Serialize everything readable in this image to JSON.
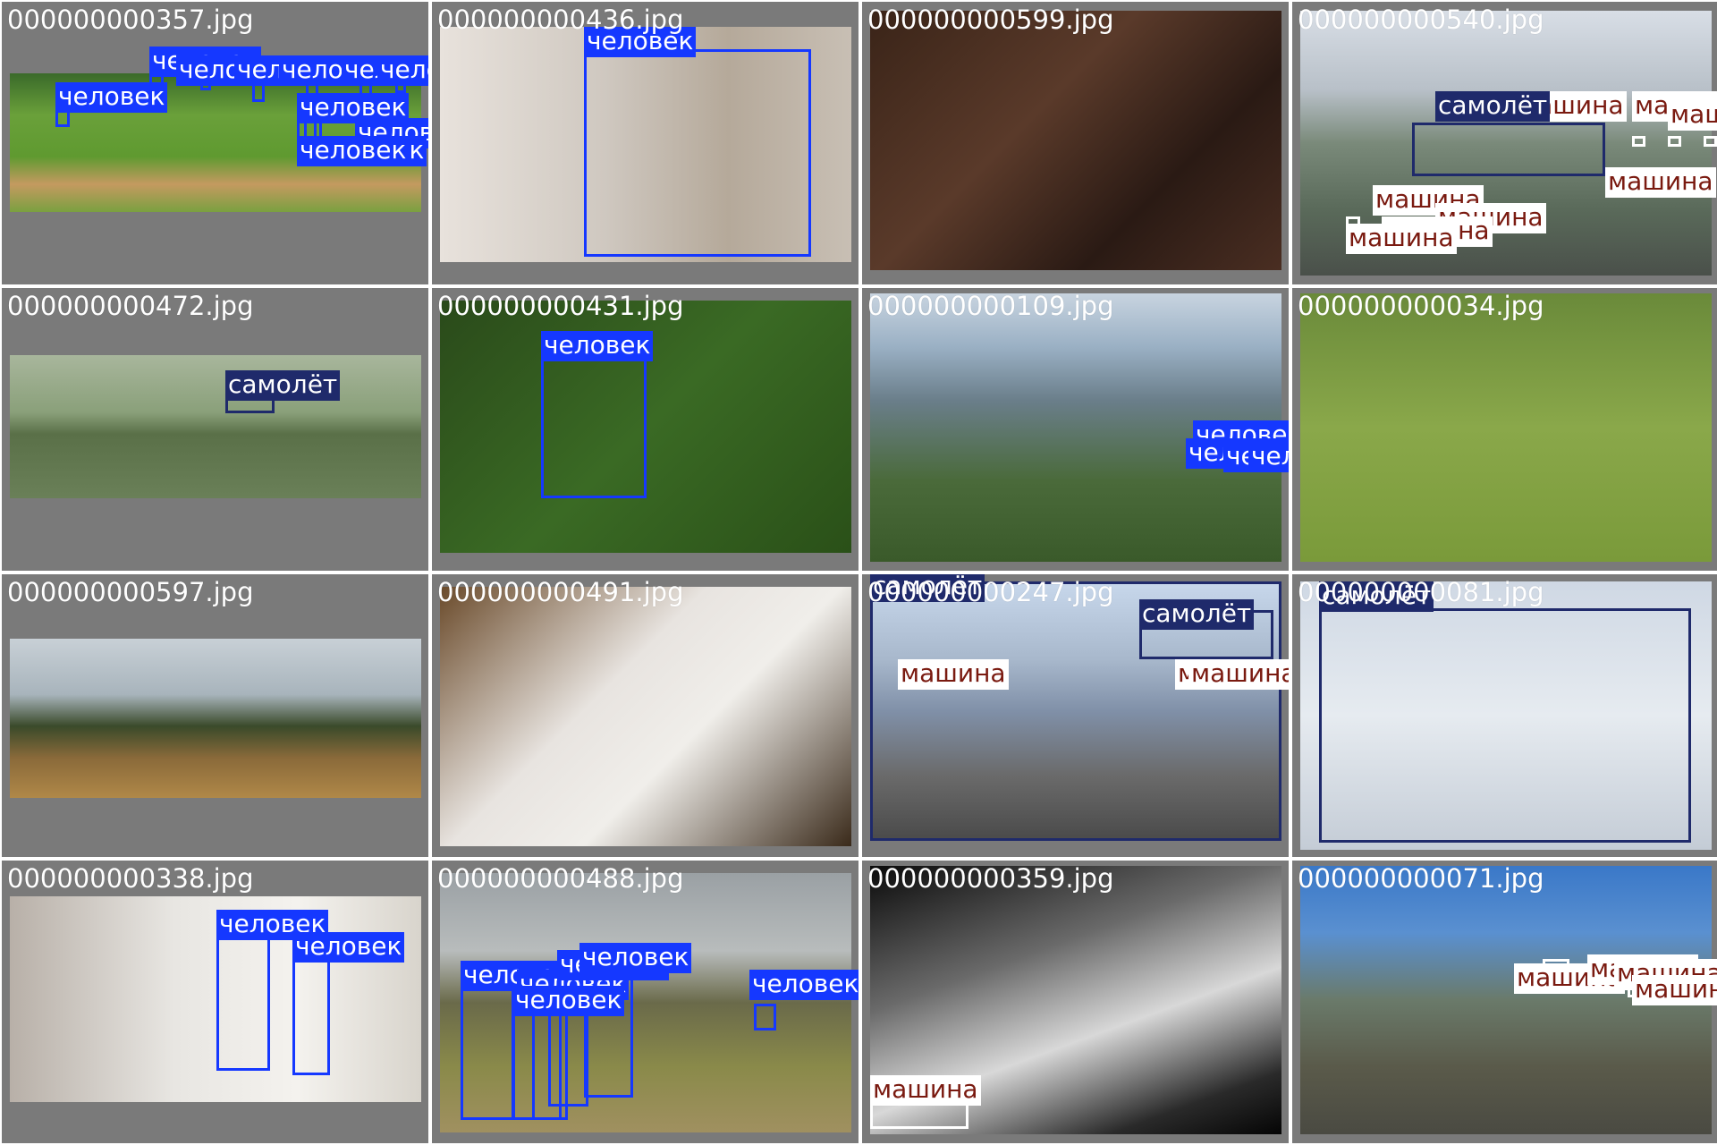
{
  "grid": {
    "tiles": [
      {
        "filename": "000000000357.jpg",
        "labels": [
          "человек",
          "человек",
          "человек",
          "человек",
          "человек",
          "человек",
          "человек",
          "человек",
          "человек",
          "человек",
          "человек"
        ]
      },
      {
        "filename": "000000000436.jpg",
        "labels": [
          "человек"
        ]
      },
      {
        "filename": "000000000599.jpg",
        "labels": []
      },
      {
        "filename": "000000000540.jpg",
        "labels": [
          "машина",
          "самолёт",
          "машина",
          "машина",
          "машина",
          "машина",
          "машина",
          "машина",
          "машина"
        ]
      },
      {
        "filename": "000000000472.jpg",
        "labels": [
          "самолёт"
        ]
      },
      {
        "filename": "000000000431.jpg",
        "labels": [
          "человек"
        ]
      },
      {
        "filename": "000000000109.jpg",
        "labels": [
          "человек",
          "человек",
          "человек",
          "человек"
        ]
      },
      {
        "filename": "000000000034.jpg",
        "labels": []
      },
      {
        "filename": "000000000597.jpg",
        "labels": []
      },
      {
        "filename": "000000000491.jpg",
        "labels": []
      },
      {
        "filename": "000000000247.jpg",
        "labels": [
          "самолёт",
          "самолёт",
          "машина",
          "машина",
          "машина"
        ]
      },
      {
        "filename": "000000000081.jpg",
        "labels": [
          "самолёт"
        ]
      },
      {
        "filename": "000000000338.jpg",
        "labels": [
          "человек",
          "человек"
        ]
      },
      {
        "filename": "000000000488.jpg",
        "labels": [
          "человек",
          "человек",
          "человек",
          "человек",
          "человек",
          "человек"
        ]
      },
      {
        "filename": "000000000359.jpg",
        "labels": [
          "машина"
        ]
      },
      {
        "filename": "000000000071.jpg",
        "labels": [
          "машина",
          "машина",
          "машина",
          "машина"
        ]
      }
    ]
  },
  "colors": {
    "person": "#1538ff",
    "airplane": "#1f2a6b",
    "car": "#ffffff",
    "car_text": "#7a1a10",
    "tile_bg": "#7a7a7a"
  }
}
